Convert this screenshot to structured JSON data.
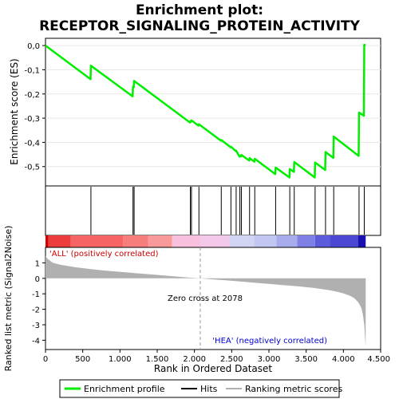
{
  "title_line1": "Enrichment plot:",
  "title_line2": "RECEPTOR_SIGNALING_PROTEIN_ACTIVITY",
  "chart_data": {
    "type": "line",
    "es_panel": {
      "ylabel": "Enrichment score (ES)",
      "ylim": [
        -0.58,
        0.03
      ],
      "yticks": [
        0.0,
        -0.1,
        -0.2,
        -0.3,
        -0.4,
        -0.5
      ],
      "ytick_labels": [
        "0,0",
        "-0,1",
        "-0,2",
        "-0,3",
        "-0,4",
        "-0,5"
      ],
      "line_color": "#00ee00"
    },
    "metric_panel": {
      "ylabel": "Ranked list metric (Signal2Noise)",
      "ylim": [
        -4.6,
        2.0
      ],
      "yticks": [
        1,
        0,
        -1,
        -2,
        -3,
        -4
      ],
      "ytick_labels": [
        "1",
        "0",
        "-1",
        "-2",
        "-3",
        "-4"
      ],
      "xlabel": "Rank in Ordered Dataset",
      "xlim": [
        0,
        4500
      ],
      "xticks": [
        0,
        500,
        1000,
        1500,
        2000,
        2500,
        3000,
        3500,
        4000,
        4500
      ],
      "xtick_labels": [
        "0",
        "500",
        "1.000",
        "1.500",
        "2.000",
        "2.500",
        "3.000",
        "3.500",
        "4.000",
        "4.500"
      ],
      "pos_label": "'ALL' (positively correlated)",
      "neg_label": "'HEA' (negatively correlated)",
      "zero_cross_label": "Zero cross at 2078",
      "zero_cross": 2078,
      "fill_color": "#b0b0b0"
    },
    "n_genes": 4300,
    "hits": [
      610,
      1175,
      1190,
      1945,
      1960,
      2060,
      2360,
      2490,
      2560,
      2610,
      2630,
      2740,
      2810,
      3090,
      3280,
      3340,
      3620,
      3760,
      3870,
      4210,
      4280
    ],
    "es_curve": {
      "x": [
        0,
        605,
        610,
        1170,
        1175,
        1185,
        1190,
        1940,
        1945,
        1955,
        1960,
        2055,
        2060,
        2355,
        2360,
        2485,
        2490,
        2555,
        2560,
        2605,
        2610,
        2625,
        2630,
        2735,
        2740,
        2805,
        2810,
        3085,
        3090,
        3275,
        3280,
        3335,
        3340,
        3615,
        3620,
        3755,
        3760,
        3865,
        3870,
        4205,
        4210,
        4275,
        4280,
        4299
      ],
      "y": [
        0.0,
        -0.139,
        -0.083,
        -0.21,
        -0.17,
        -0.172,
        -0.146,
        -0.318,
        -0.313,
        -0.315,
        -0.309,
        -0.331,
        -0.325,
        -0.393,
        -0.39,
        -0.42,
        -0.418,
        -0.436,
        -0.434,
        -0.459,
        -0.455,
        -0.458,
        -0.452,
        -0.475,
        -0.465,
        -0.48,
        -0.468,
        -0.531,
        -0.504,
        -0.545,
        -0.51,
        -0.522,
        -0.481,
        -0.545,
        -0.483,
        -0.514,
        -0.44,
        -0.464,
        -0.376,
        -0.456,
        -0.277,
        -0.29,
        0.003,
        0.003
      ]
    },
    "metric_curve": {
      "x": [
        0,
        30,
        100,
        200,
        400,
        600,
        800,
        1000,
        1200,
        1400,
        1600,
        1800,
        1950,
        2078,
        2200,
        2400,
        2600,
        2800,
        3000,
        3200,
        3400,
        3600,
        3800,
        3900,
        4000,
        4100,
        4150,
        4200,
        4240,
        4260,
        4280,
        4290,
        4299
      ],
      "y": [
        1.45,
        1.25,
        1.0,
        0.88,
        0.72,
        0.6,
        0.5,
        0.42,
        0.34,
        0.26,
        0.18,
        0.1,
        0.04,
        0.0,
        -0.05,
        -0.12,
        -0.2,
        -0.28,
        -0.36,
        -0.44,
        -0.52,
        -0.62,
        -0.76,
        -0.85,
        -0.97,
        -1.15,
        -1.3,
        -1.55,
        -1.9,
        -2.3,
        -3.0,
        -3.8,
        -4.4
      ]
    },
    "heat_bar": [
      {
        "from": 0,
        "to": 40,
        "color": "#d40000"
      },
      {
        "from": 40,
        "to": 340,
        "color": "#ec3c3c"
      },
      {
        "from": 340,
        "to": 1040,
        "color": "#f66464"
      },
      {
        "from": 1040,
        "to": 1380,
        "color": "#f77c7c"
      },
      {
        "from": 1380,
        "to": 1700,
        "color": "#f99a9a"
      },
      {
        "from": 1700,
        "to": 2078,
        "color": "#f8c0dc"
      },
      {
        "from": 2078,
        "to": 2470,
        "color": "#f4c8e8"
      },
      {
        "from": 2470,
        "to": 2800,
        "color": "#d2d4f4"
      },
      {
        "from": 2800,
        "to": 3100,
        "color": "#c2c6f2"
      },
      {
        "from": 3100,
        "to": 3380,
        "color": "#a8acec"
      },
      {
        "from": 3380,
        "to": 3620,
        "color": "#7e80e6"
      },
      {
        "from": 3620,
        "to": 3820,
        "color": "#5a5cdc"
      },
      {
        "from": 3820,
        "to": 4200,
        "color": "#4c48d4"
      },
      {
        "from": 4200,
        "to": 4299,
        "color": "#1a10b0"
      }
    ],
    "legend": {
      "placement": "bottom",
      "items": [
        {
          "label": "Enrichment profile",
          "color": "#00ee00"
        },
        {
          "label": "Hits",
          "color": "#000000"
        },
        {
          "label": "Ranking metric scores",
          "color": "#b0b0b0"
        }
      ]
    }
  }
}
